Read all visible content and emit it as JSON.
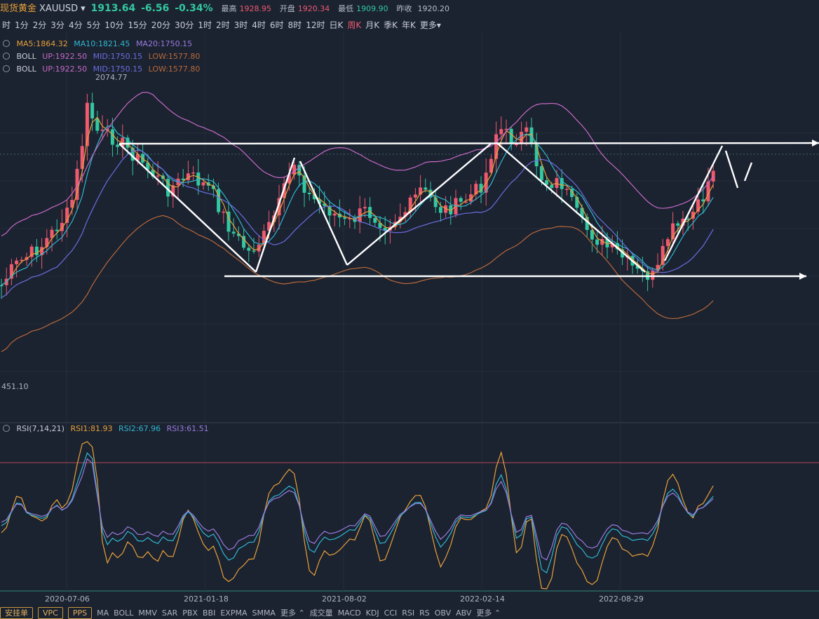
{
  "header": {
    "name": "现货黄金",
    "symbol": "XAUUSD",
    "price": "1913.64",
    "change": "-6.56",
    "change_pct": "-0.34%",
    "high_label": "最高",
    "high": "1928.95",
    "open_label": "开盘",
    "open": "1920.34",
    "low_label": "最低",
    "low": "1909.90",
    "prev_label": "昨收",
    "prev": "1920.20"
  },
  "periods": [
    "时",
    "1分",
    "2分",
    "3分",
    "4分",
    "5分",
    "10分",
    "15分",
    "20分",
    "30分",
    "1时",
    "2时",
    "3时",
    "4时",
    "6时",
    "8时",
    "12时",
    "日K",
    "周K",
    "月K",
    "季K",
    "年K",
    "更多"
  ],
  "active_period": "周K",
  "indicators": {
    "ma": {
      "ma5": "MA5:1864.32",
      "ma10": "MA10:1821.45",
      "ma20": "MA20:1750.15"
    },
    "boll1": {
      "name": "BOLL",
      "up": "UP:1922.50",
      "mid": "MID:1750.15",
      "low": "LOW:1577.80"
    },
    "boll2": {
      "name": "BOLL",
      "up": "UP:1922.50",
      "mid": "MID:1750.15",
      "low": "LOW:1577.80"
    },
    "rsi": {
      "name": "RSI(7,14,21)",
      "r1": "RSI1:81.93",
      "r2": "RSI2:67.96",
      "r3": "RSI3:61.51"
    }
  },
  "annotations": {
    "max_price": "2074.77",
    "min_price": "451.10"
  },
  "dates": [
    "2020-07-06",
    "2021-01-18",
    "2021-08-02",
    "2022-02-14",
    "2022-08-29"
  ],
  "bottom_bar": [
    "安挂单",
    "VPC",
    "PPS",
    "MA",
    "BOLL",
    "MMV",
    "SAR",
    "PBX",
    "BBI",
    "EXPMA",
    "SMMA",
    "更多",
    "成交量",
    "MACD",
    "KDJ",
    "CCI",
    "RSI",
    "RS",
    "OBV",
    "ABV",
    "更多"
  ],
  "colors": {
    "up": "#ef5a6f",
    "down": "#33c8a0",
    "ma5": "#e8a23a",
    "ma10": "#2fb8d0",
    "ma20": "#9a7be0",
    "boll_up": "#c66bc6",
    "boll_mid": "#6a6fe0",
    "boll_low": "#b8693a",
    "bg": "#1b2230"
  }
}
